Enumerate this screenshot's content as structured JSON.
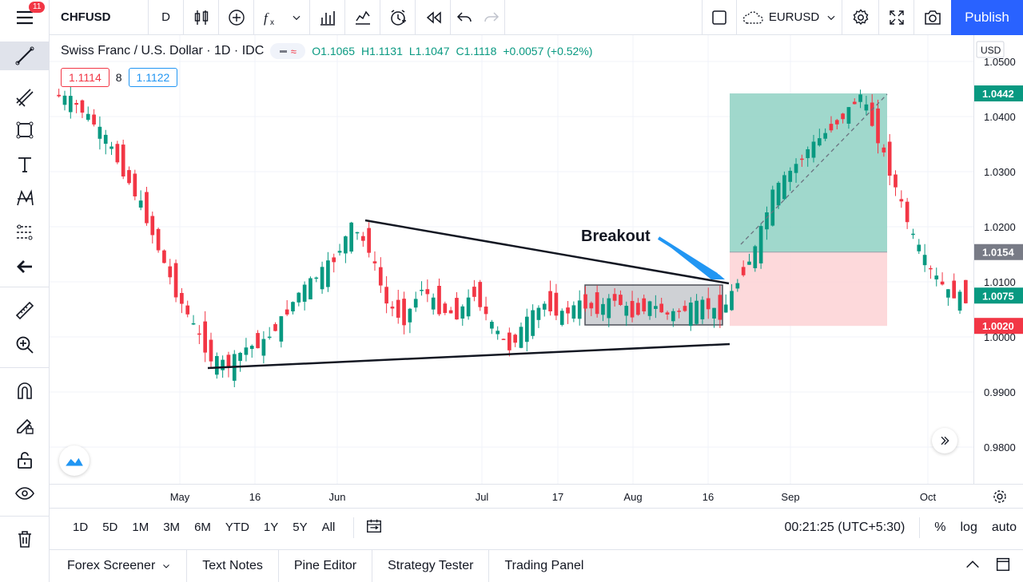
{
  "toolbar": {
    "menu_badge": "11",
    "symbol": "CHFUSD",
    "interval": "D",
    "compare_symbol": "EURUSD",
    "publish_label": "Publish"
  },
  "legend": {
    "title": "Swiss Franc / U.S. Dollar · 1D · IDC",
    "pill": "≈",
    "open": "O1.1065",
    "high": "H1.1131",
    "low": "L1.1047",
    "close": "C1.1118",
    "change": "+0.0057 (+0.52%)",
    "bid": "1.1114",
    "spread": "8",
    "ask": "1.1122"
  },
  "price_axis": {
    "currency": "USD",
    "ticks": [
      "1.0500",
      "1.0400",
      "1.0300",
      "1.0200",
      "1.0100",
      "1.0000",
      "0.9900",
      "0.9800"
    ],
    "labels": [
      {
        "text": "1.0442",
        "color": "#089981"
      },
      {
        "text": "1.0154",
        "color": "#787b86"
      },
      {
        "text": "1.0075",
        "color": "#089981"
      },
      {
        "text": "1.0020",
        "color": "#f23645"
      }
    ]
  },
  "time_axis": {
    "ticks": [
      "May",
      "16",
      "Jun",
      "Jul",
      "17",
      "Aug",
      "16",
      "Sep",
      "Oct"
    ]
  },
  "annotation": {
    "breakout_label": "Breakout"
  },
  "range_bar": {
    "ranges": [
      "1D",
      "5D",
      "1M",
      "3M",
      "6M",
      "YTD",
      "1Y",
      "5Y",
      "All"
    ],
    "clock": "00:21:25 (UTC+5:30)",
    "percent": "%",
    "log": "log",
    "auto": "auto"
  },
  "bottom_tabs": [
    "Forex Screener",
    "Text Notes",
    "Pine Editor",
    "Strategy Tester",
    "Trading Panel"
  ],
  "colors": {
    "up": "#089981",
    "down": "#f23645",
    "accent": "#2962ff",
    "profit_zone": "#8fd1c3",
    "loss_zone": "#fdd5d7"
  },
  "icons": {
    "left": [
      "menu-icon",
      "trend-line-icon",
      "fib-icon",
      "rectangle-icon",
      "text-icon",
      "pattern-icon",
      "prediction-icon",
      "back-arrow-icon",
      "ruler-icon",
      "zoom-in-icon",
      "magnet-icon",
      "lock-pen-icon",
      "unlock-icon",
      "eye-icon",
      "trash-icon"
    ]
  }
}
